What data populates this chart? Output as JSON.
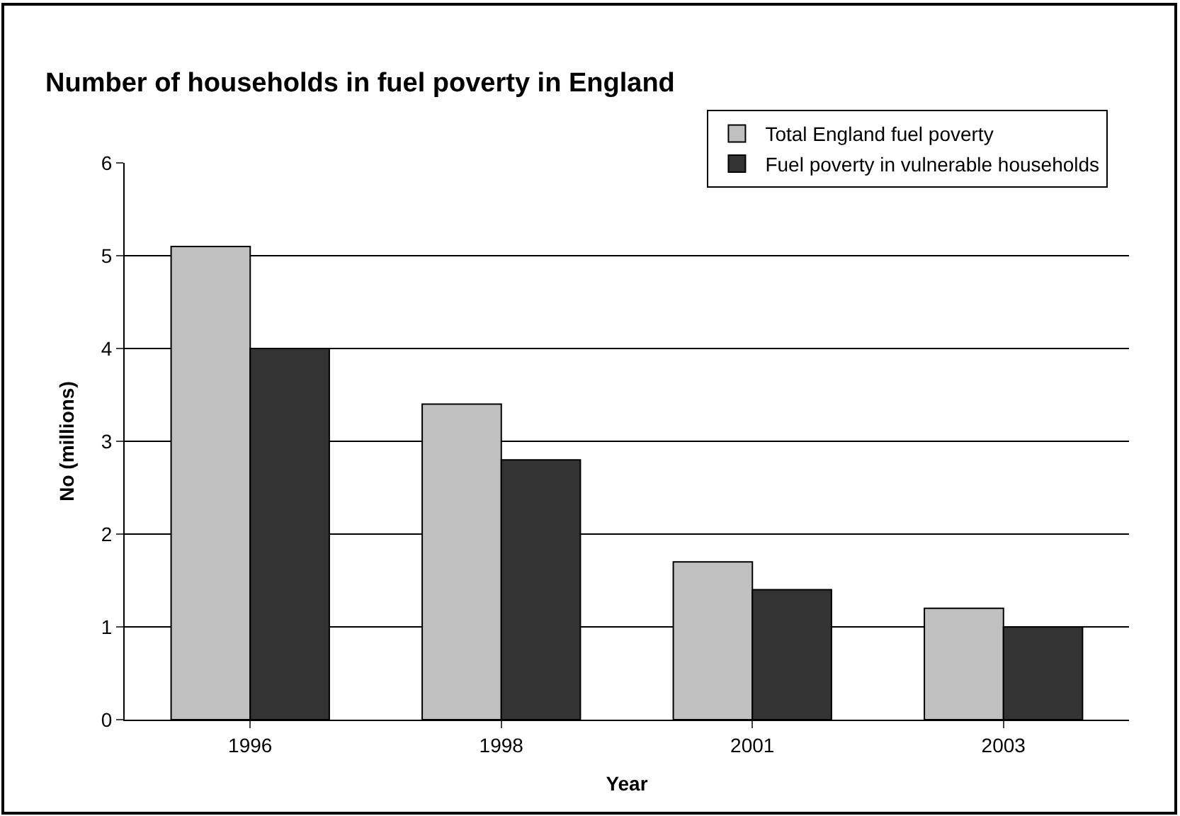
{
  "chart_data": {
    "type": "bar",
    "title": "Number of households in fuel poverty in England",
    "xlabel": "Year",
    "ylabel": "No (millions)",
    "categories": [
      "1996",
      "1998",
      "2001",
      "2003"
    ],
    "series": [
      {
        "name": "Total England fuel poverty",
        "color": "#c0c0c0",
        "values": [
          5.1,
          3.4,
          1.7,
          1.2
        ]
      },
      {
        "name": "Fuel poverty in vulnerable households",
        "color": "#333333",
        "values": [
          4.0,
          2.8,
          1.4,
          1.0
        ]
      }
    ],
    "ylim": [
      0,
      6
    ],
    "yticks": [
      0,
      1,
      2,
      3,
      4,
      5,
      6
    ],
    "grid": "y",
    "legend": "top right"
  }
}
